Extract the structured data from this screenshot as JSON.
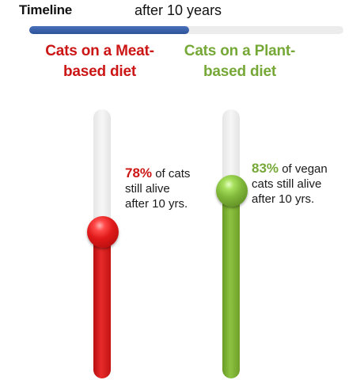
{
  "timeline": {
    "label": "Timeline",
    "value_text": "after 10 years",
    "progress": 0.51
  },
  "groups": [
    {
      "id": "meat",
      "title": "Cats on a Meat-based diet",
      "percent_text": "78%",
      "percent": 78,
      "caption_line1": " of cats",
      "caption_line2": "still alive",
      "caption_line3": "after 10 yrs.",
      "color": "#cc1616"
    },
    {
      "id": "plant",
      "title": "Cats on a Plant-based diet",
      "percent_text": "83%",
      "percent": 83,
      "caption_line1": " of vegan",
      "caption_line2": "cats still alive",
      "caption_line3": "after 10 yrs.",
      "color": "#76a838"
    }
  ]
}
